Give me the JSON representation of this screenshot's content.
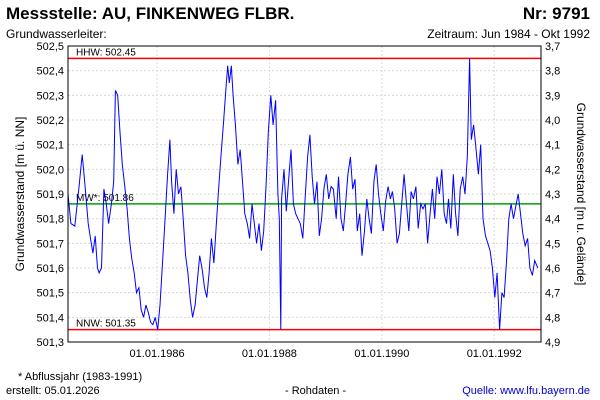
{
  "header": {
    "title": "Messstelle: AU, FINKENWEG FLBR.",
    "number": "Nr: 9791",
    "aquifer": "Grundwasserleiter:",
    "period": "Zeitraum: Jun 1984 - Okt 1992"
  },
  "footer": {
    "footnote": "* Abflussjahr (1983-1991)",
    "created": "erstellt:  05.01.2026",
    "raw": "- Rohdaten -",
    "source": "Quelle: www.lfu.bayern.de"
  },
  "chart_data": {
    "type": "line",
    "ylabel": "Grundwasserstand [m ü. NN]",
    "ylabel_right": "Grundwasserstand [m u. Gelände]",
    "xlim": [
      "1984-06-01",
      "1992-10-31"
    ],
    "ylim": [
      501.3,
      502.5
    ],
    "yticks": [
      "501,3",
      "501,4",
      "501,5",
      "501,6",
      "501,7",
      "501,8",
      "501,9",
      "502,0",
      "502,1",
      "502,2",
      "502,3",
      "502,4",
      "502,5"
    ],
    "yticks_right": [
      "3,7",
      "3,8",
      "3,9",
      "4,0",
      "4,1",
      "4,2",
      "4,3",
      "4,4",
      "4,5",
      "4,6",
      "4,7",
      "4,8",
      "4,9"
    ],
    "xticks": [
      {
        "date": "1986-01-01",
        "label": "01.01.1986"
      },
      {
        "date": "1988-01-01",
        "label": "01.01.1988"
      },
      {
        "date": "1990-01-01",
        "label": "01.01.1990"
      },
      {
        "date": "1992-01-01",
        "label": "01.01.1992"
      }
    ],
    "grid": true,
    "reference_lines": [
      {
        "label": "HHW: 502.45",
        "value": 502.45,
        "color": "#ff0000"
      },
      {
        "label": "MW*: 501.86",
        "value": 501.86,
        "color": "#00a000"
      },
      {
        "label": "NNW: 501.35",
        "value": 501.35,
        "color": "#ff0000"
      }
    ],
    "series": [
      {
        "color": "#0000ff",
        "points": [
          [
            "1984-06-01",
            501.9
          ],
          [
            "1984-06-20",
            501.78
          ],
          [
            "1984-07-15",
            501.77
          ],
          [
            "1984-08-10",
            501.92
          ],
          [
            "1984-09-01",
            502.06
          ],
          [
            "1984-09-20",
            501.93
          ],
          [
            "1984-10-10",
            501.78
          ],
          [
            "1984-10-25",
            501.72
          ],
          [
            "1984-11-10",
            501.66
          ],
          [
            "1984-11-25",
            501.73
          ],
          [
            "1984-12-10",
            501.6
          ],
          [
            "1984-12-20",
            501.58
          ],
          [
            "1985-01-05",
            501.6
          ],
          [
            "1985-01-20",
            501.92
          ],
          [
            "1985-02-05",
            501.86
          ],
          [
            "1985-02-20",
            501.78
          ],
          [
            "1985-03-10",
            501.86
          ],
          [
            "1985-03-25",
            501.95
          ],
          [
            "1985-04-05",
            502.32
          ],
          [
            "1985-04-20",
            502.3
          ],
          [
            "1985-05-05",
            502.15
          ],
          [
            "1985-05-20",
            502.02
          ],
          [
            "1985-06-05",
            501.93
          ],
          [
            "1985-06-20",
            501.84
          ],
          [
            "1985-07-05",
            501.72
          ],
          [
            "1985-07-20",
            501.64
          ],
          [
            "1985-08-05",
            501.58
          ],
          [
            "1985-08-20",
            501.5
          ],
          [
            "1985-09-05",
            501.52
          ],
          [
            "1985-09-20",
            501.43
          ],
          [
            "1985-10-05",
            501.4
          ],
          [
            "1985-10-20",
            501.45
          ],
          [
            "1985-11-05",
            501.42
          ],
          [
            "1985-11-20",
            501.38
          ],
          [
            "1985-12-05",
            501.37
          ],
          [
            "1985-12-20",
            501.4
          ],
          [
            "1986-01-05",
            501.35
          ],
          [
            "1986-01-20",
            501.45
          ],
          [
            "1986-02-05",
            501.62
          ],
          [
            "1986-02-20",
            501.78
          ],
          [
            "1986-03-10",
            501.98
          ],
          [
            "1986-03-25",
            502.12
          ],
          [
            "1986-04-05",
            501.95
          ],
          [
            "1986-04-20",
            501.82
          ],
          [
            "1986-05-05",
            502.0
          ],
          [
            "1986-05-20",
            501.9
          ],
          [
            "1986-06-05",
            501.93
          ],
          [
            "1986-06-20",
            501.8
          ],
          [
            "1986-07-05",
            501.65
          ],
          [
            "1986-07-20",
            501.58
          ],
          [
            "1986-08-05",
            501.47
          ],
          [
            "1986-08-20",
            501.4
          ],
          [
            "1986-09-05",
            501.45
          ],
          [
            "1986-09-20",
            501.55
          ],
          [
            "1986-10-05",
            501.65
          ],
          [
            "1986-10-20",
            501.6
          ],
          [
            "1986-11-05",
            501.52
          ],
          [
            "1986-11-20",
            501.48
          ],
          [
            "1986-12-05",
            501.58
          ],
          [
            "1986-12-20",
            501.72
          ],
          [
            "1987-01-05",
            501.62
          ],
          [
            "1987-01-20",
            501.77
          ],
          [
            "1987-02-05",
            501.92
          ],
          [
            "1987-02-20",
            502.05
          ],
          [
            "1987-03-10",
            502.2
          ],
          [
            "1987-03-25",
            502.33
          ],
          [
            "1987-04-05",
            502.42
          ],
          [
            "1987-04-15",
            502.35
          ],
          [
            "1987-04-28",
            502.42
          ],
          [
            "1987-05-10",
            502.3
          ],
          [
            "1987-05-25",
            502.18
          ],
          [
            "1987-06-10",
            502.02
          ],
          [
            "1987-06-25",
            502.08
          ],
          [
            "1987-07-10",
            501.95
          ],
          [
            "1987-07-25",
            501.82
          ],
          [
            "1987-08-10",
            501.78
          ],
          [
            "1987-08-25",
            501.72
          ],
          [
            "1987-09-10",
            501.86
          ],
          [
            "1987-09-25",
            501.78
          ],
          [
            "1987-10-10",
            501.7
          ],
          [
            "1987-10-25",
            501.78
          ],
          [
            "1987-11-10",
            501.67
          ],
          [
            "1987-11-25",
            501.75
          ],
          [
            "1987-12-10",
            501.93
          ],
          [
            "1987-12-25",
            502.15
          ],
          [
            "1988-01-10",
            502.3
          ],
          [
            "1988-01-25",
            502.18
          ],
          [
            "1988-02-10",
            502.28
          ],
          [
            "1988-02-25",
            501.9
          ],
          [
            "1988-03-05",
            501.8
          ],
          [
            "1988-03-15",
            501.35
          ],
          [
            "1988-03-20",
            501.88
          ],
          [
            "1988-04-05",
            502.0
          ],
          [
            "1988-04-20",
            501.83
          ],
          [
            "1988-05-05",
            501.96
          ],
          [
            "1988-05-20",
            502.08
          ],
          [
            "1988-06-05",
            501.86
          ],
          [
            "1988-06-20",
            501.82
          ],
          [
            "1988-07-05",
            501.8
          ],
          [
            "1988-07-20",
            501.78
          ],
          [
            "1988-08-05",
            501.72
          ],
          [
            "1988-08-20",
            501.88
          ],
          [
            "1988-09-05",
            502.05
          ],
          [
            "1988-09-20",
            502.14
          ],
          [
            "1988-10-05",
            501.97
          ],
          [
            "1988-10-20",
            501.86
          ],
          [
            "1988-11-05",
            501.95
          ],
          [
            "1988-11-20",
            501.73
          ],
          [
            "1988-12-05",
            501.8
          ],
          [
            "1988-12-20",
            501.92
          ],
          [
            "1989-01-05",
            501.98
          ],
          [
            "1989-01-20",
            501.88
          ],
          [
            "1989-02-05",
            501.93
          ],
          [
            "1989-02-20",
            501.92
          ],
          [
            "1989-03-10",
            501.8
          ],
          [
            "1989-03-25",
            501.97
          ],
          [
            "1989-04-10",
            501.8
          ],
          [
            "1989-04-25",
            501.75
          ],
          [
            "1989-05-10",
            501.86
          ],
          [
            "1989-05-25",
            501.98
          ],
          [
            "1989-06-10",
            502.05
          ],
          [
            "1989-06-25",
            501.92
          ],
          [
            "1989-07-10",
            501.96
          ],
          [
            "1989-07-25",
            501.75
          ],
          [
            "1989-08-10",
            501.82
          ],
          [
            "1989-08-25",
            501.65
          ],
          [
            "1989-09-10",
            501.75
          ],
          [
            "1989-09-25",
            501.88
          ],
          [
            "1989-10-10",
            501.8
          ],
          [
            "1989-10-25",
            501.74
          ],
          [
            "1989-11-10",
            501.95
          ],
          [
            "1989-11-25",
            502.02
          ],
          [
            "1989-12-10",
            501.9
          ],
          [
            "1989-12-25",
            501.82
          ],
          [
            "1990-01-10",
            501.75
          ],
          [
            "1990-01-25",
            501.87
          ],
          [
            "1990-02-10",
            501.93
          ],
          [
            "1990-02-25",
            501.88
          ],
          [
            "1990-03-10",
            501.91
          ],
          [
            "1990-03-25",
            501.84
          ],
          [
            "1990-04-10",
            501.7
          ],
          [
            "1990-04-25",
            501.74
          ],
          [
            "1990-05-10",
            501.86
          ],
          [
            "1990-05-25",
            501.98
          ],
          [
            "1990-06-10",
            501.86
          ],
          [
            "1990-06-25",
            501.75
          ],
          [
            "1990-07-10",
            501.91
          ],
          [
            "1990-07-25",
            501.88
          ],
          [
            "1990-08-10",
            501.93
          ],
          [
            "1990-08-25",
            501.76
          ],
          [
            "1990-09-10",
            501.86
          ],
          [
            "1990-09-25",
            501.84
          ],
          [
            "1990-10-10",
            501.86
          ],
          [
            "1990-10-25",
            501.7
          ],
          [
            "1990-11-10",
            501.82
          ],
          [
            "1990-11-25",
            501.92
          ],
          [
            "1990-12-10",
            501.8
          ],
          [
            "1990-12-25",
            501.97
          ],
          [
            "1991-01-10",
            501.9
          ],
          [
            "1991-01-25",
            502.0
          ],
          [
            "1991-02-10",
            501.82
          ],
          [
            "1991-02-25",
            501.78
          ],
          [
            "1991-03-10",
            501.88
          ],
          [
            "1991-03-25",
            501.76
          ],
          [
            "1991-04-10",
            501.98
          ],
          [
            "1991-04-25",
            501.82
          ],
          [
            "1991-05-10",
            501.73
          ],
          [
            "1991-05-25",
            501.92
          ],
          [
            "1991-06-10",
            501.97
          ],
          [
            "1991-06-25",
            501.9
          ],
          [
            "1991-07-10",
            502.05
          ],
          [
            "1991-07-25",
            502.45
          ],
          [
            "1991-08-05",
            502.12
          ],
          [
            "1991-08-20",
            502.18
          ],
          [
            "1991-09-05",
            502.08
          ],
          [
            "1991-09-20",
            501.98
          ],
          [
            "1991-10-05",
            502.1
          ],
          [
            "1991-10-20",
            501.8
          ],
          [
            "1991-11-05",
            501.73
          ],
          [
            "1991-11-20",
            501.7
          ],
          [
            "1991-12-05",
            501.67
          ],
          [
            "1991-12-20",
            501.6
          ],
          [
            "1992-01-05",
            501.48
          ],
          [
            "1992-01-20",
            501.58
          ],
          [
            "1992-02-05",
            501.35
          ],
          [
            "1992-02-20",
            501.5
          ],
          [
            "1992-03-05",
            501.48
          ],
          [
            "1992-03-20",
            501.62
          ],
          [
            "1992-04-05",
            501.8
          ],
          [
            "1992-04-20",
            501.86
          ],
          [
            "1992-05-05",
            501.8
          ],
          [
            "1992-05-20",
            501.85
          ],
          [
            "1992-06-05",
            501.9
          ],
          [
            "1992-06-20",
            501.82
          ],
          [
            "1992-07-05",
            501.74
          ],
          [
            "1992-07-20",
            501.69
          ],
          [
            "1992-08-05",
            501.72
          ],
          [
            "1992-08-20",
            501.6
          ],
          [
            "1992-09-05",
            501.57
          ],
          [
            "1992-09-20",
            501.63
          ],
          [
            "1992-10-10",
            501.6
          ]
        ]
      }
    ]
  }
}
